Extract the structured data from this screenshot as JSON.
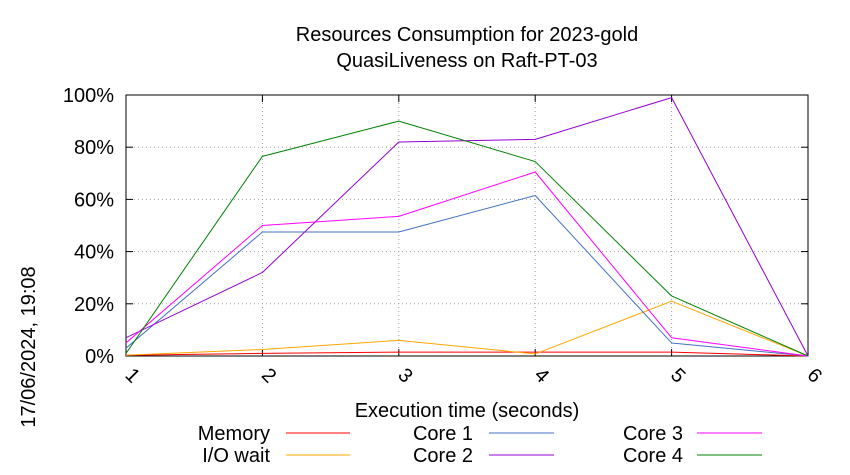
{
  "chart_data": {
    "type": "line",
    "title_line1": "Resources Consumption for 2023-gold",
    "title_line2": "QuasiLiveness on Raft-PT-03",
    "xlabel": "Execution time (seconds)",
    "timestamp": "17/06/2024, 19:08",
    "x": [
      1,
      2,
      3,
      4,
      5,
      6
    ],
    "x_tick_labels": [
      "1",
      "2",
      "3",
      "4",
      "5",
      "6"
    ],
    "xlim": [
      1,
      6
    ],
    "ylim": [
      0,
      100
    ],
    "y_ticks": [
      0,
      20,
      40,
      60,
      80,
      100
    ],
    "y_tick_labels": [
      "0%",
      "20%",
      "40%",
      "60%",
      "80%",
      "100%"
    ],
    "grid": true,
    "legend_placement": "bottom",
    "series": [
      {
        "name": "Memory",
        "color": "#ff0000",
        "values": [
          0.3,
          1.0,
          1.5,
          1.5,
          1.5,
          0
        ]
      },
      {
        "name": "I/O wait",
        "color": "#ffa500",
        "values": [
          0.3,
          2.5,
          6,
          0.8,
          21,
          0
        ]
      },
      {
        "name": "Core 1",
        "color": "#4472c4",
        "values": [
          3,
          47.5,
          47.5,
          61.5,
          5,
          0
        ]
      },
      {
        "name": "Core 2",
        "color": "#9400d3",
        "values": [
          7,
          32,
          82,
          83,
          99,
          0
        ]
      },
      {
        "name": "Core 3",
        "color": "#ff00ff",
        "values": [
          5,
          50,
          53.5,
          70.5,
          7,
          0
        ]
      },
      {
        "name": "Core 4",
        "color": "#008000",
        "values": [
          1,
          76.5,
          90,
          74.5,
          23,
          0
        ]
      }
    ]
  }
}
